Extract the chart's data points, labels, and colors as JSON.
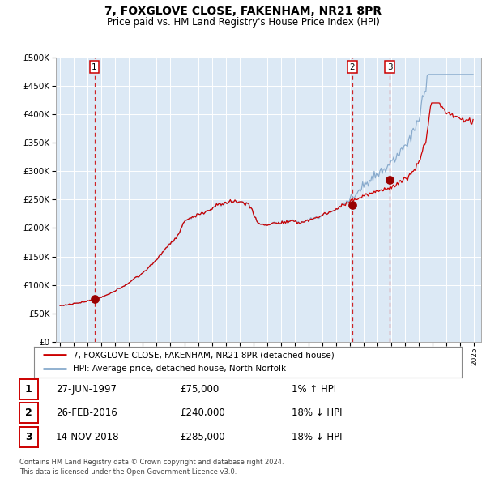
{
  "title": "7, FOXGLOVE CLOSE, FAKENHAM, NR21 8PR",
  "subtitle": "Price paid vs. HM Land Registry's House Price Index (HPI)",
  "footer": "Contains HM Land Registry data © Crown copyright and database right 2024.\nThis data is licensed under the Open Government Licence v3.0.",
  "legend_line1": "7, FOXGLOVE CLOSE, FAKENHAM, NR21 8PR (detached house)",
  "legend_line2": "HPI: Average price, detached house, North Norfolk",
  "sales": [
    {
      "label": "1",
      "date": "27-JUN-1997",
      "price": 75000,
      "hpi_pct": "1%",
      "direction": "↑"
    },
    {
      "label": "2",
      "date": "26-FEB-2016",
      "price": 240000,
      "hpi_pct": "18%",
      "direction": "↓"
    },
    {
      "label": "3",
      "date": "14-NOV-2018",
      "price": 285000,
      "hpi_pct": "18%",
      "direction": "↓"
    }
  ],
  "sale_dates_approx": [
    1997.49,
    2016.15,
    2018.87
  ],
  "sale_prices": [
    75000,
    240000,
    285000
  ],
  "ylim": [
    0,
    500000
  ],
  "yticks": [
    0,
    50000,
    100000,
    150000,
    200000,
    250000,
    300000,
    350000,
    400000,
    450000,
    500000
  ],
  "bg_color": "#dce9f5",
  "line_color_red": "#cc0000",
  "line_color_blue": "#88aacc",
  "dashed_line_color": "#cc0000",
  "marker_color": "#990000",
  "grid_color": "#ffffff",
  "border_color": "#aaaaaa",
  "xlim_left": 1994.7,
  "xlim_right": 2025.5
}
